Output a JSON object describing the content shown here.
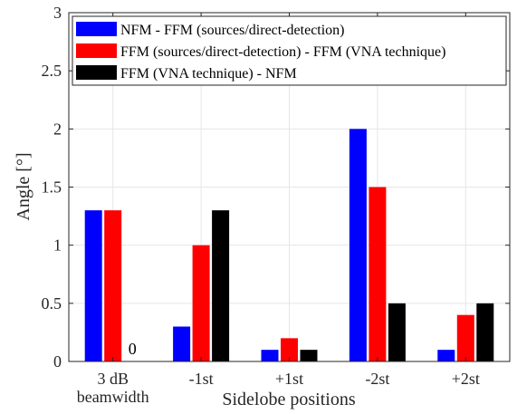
{
  "chart_data": {
    "type": "bar",
    "xlabel": "Sidelobe positions",
    "ylabel": "Angle [°]",
    "ylim": [
      0,
      3
    ],
    "yticks": [
      "0",
      "0.5",
      "1",
      "1.5",
      "2",
      "2.5",
      "3"
    ],
    "grid": true,
    "legend_position": "top-left",
    "categories": [
      [
        "3 dB",
        "beamwidth"
      ],
      [
        "-1st"
      ],
      [
        "+1st"
      ],
      [
        "-2st"
      ],
      [
        "+2st"
      ]
    ],
    "series": [
      {
        "name": "NFM - FFM (sources/direct-detection)",
        "color": "#0000ff",
        "values": [
          1.3,
          0.3,
          0.1,
          2.0,
          0.1
        ]
      },
      {
        "name": "FFM (sources/direct-detection) - FFM (VNA technique)",
        "color": "#ff0000",
        "values": [
          1.3,
          1.0,
          0.2,
          1.5,
          0.4
        ]
      },
      {
        "name": "FFM (VNA technique) - NFM",
        "color": "#000000",
        "values": [
          0,
          1.3,
          0.1,
          0.5,
          0.5
        ]
      }
    ],
    "annotations": [
      {
        "text": "0",
        "category_index": 0,
        "series_index": 2
      }
    ]
  }
}
